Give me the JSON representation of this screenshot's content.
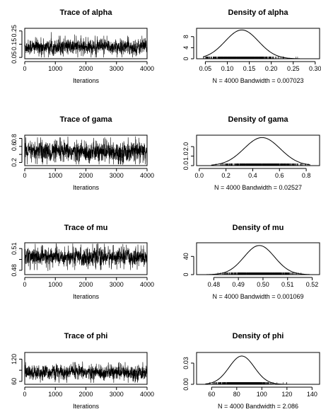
{
  "chart_data": [
    {
      "type": "line",
      "plot": "trace",
      "parameter": "alpha",
      "title": "Trace of alpha",
      "xlabel": "Iterations",
      "ylabel": "",
      "x_ticks": [
        0,
        1000,
        2000,
        3000,
        4000
      ],
      "y_ticks": [
        0.05,
        0.15,
        0.25
      ],
      "y_tick_labels": [
        "0.05",
        "0.15",
        "0.25"
      ],
      "xlim": [
        0,
        4000
      ],
      "ylim": [
        0.04,
        0.27
      ],
      "series": [
        {
          "iterations": 4000,
          "center": 0.13,
          "spread": 0.03,
          "min": 0.05,
          "max": 0.26
        }
      ]
    },
    {
      "type": "line",
      "plot": "density",
      "parameter": "alpha",
      "title": "Density of alpha",
      "xlabel": "N = 4000   Bandwidth = 0.007023",
      "x_ticks": [
        0.05,
        0.1,
        0.15,
        0.2,
        0.25,
        0.3
      ],
      "x_tick_labels": [
        "0.05",
        "0.10",
        "0.15",
        "0.20",
        "0.25",
        "0.30"
      ],
      "y_ticks": [
        0,
        4,
        8
      ],
      "y_tick_labels": [
        "0",
        "4",
        "8"
      ],
      "xlim": [
        0.03,
        0.31
      ],
      "ylim": [
        0,
        11
      ],
      "series": [
        {
          "distribution": "normal",
          "mean": 0.133,
          "sd": 0.038,
          "peak": 10.4,
          "support": [
            0.045,
            0.265
          ]
        }
      ]
    },
    {
      "type": "line",
      "plot": "trace",
      "parameter": "gama",
      "title": "Trace of gama",
      "xlabel": "Iterations",
      "x_ticks": [
        0,
        1000,
        2000,
        3000,
        4000
      ],
      "y_ticks": [
        0.2,
        0.4,
        0.6,
        0.8
      ],
      "y_tick_labels": [
        "0.2",
        "",
        "0.6",
        "0.8"
      ],
      "xlim": [
        0,
        4000
      ],
      "ylim": [
        0.12,
        0.88
      ],
      "series": [
        {
          "iterations": 4000,
          "center": 0.46,
          "spread": 0.13,
          "min": 0.15,
          "max": 0.85
        }
      ]
    },
    {
      "type": "line",
      "plot": "density",
      "parameter": "gama",
      "title": "Density of gama",
      "xlabel": "N = 4000   Bandwidth = 0.02527",
      "x_ticks": [
        0.0,
        0.2,
        0.4,
        0.6,
        0.8
      ],
      "x_tick_labels": [
        "0.0",
        "0.2",
        "0.4",
        "0.6",
        "0.8"
      ],
      "y_ticks": [
        0.0,
        1.0,
        2.0
      ],
      "y_tick_labels": [
        "0.0",
        "1.0",
        "2.0"
      ],
      "xlim": [
        -0.02,
        0.9
      ],
      "ylim": [
        0,
        3.2
      ],
      "series": [
        {
          "distribution": "normal",
          "mean": 0.47,
          "sd": 0.135,
          "peak": 2.95,
          "support": [
            0.09,
            0.83
          ]
        }
      ]
    },
    {
      "type": "line",
      "plot": "trace",
      "parameter": "mu",
      "title": "Trace of mu",
      "xlabel": "Iterations",
      "x_ticks": [
        0,
        1000,
        2000,
        3000,
        4000
      ],
      "y_ticks": [
        0.48,
        0.495,
        0.51
      ],
      "y_tick_labels": [
        "0.48",
        "",
        "0.51"
      ],
      "xlim": [
        0,
        4000
      ],
      "ylim": [
        0.474,
        0.518
      ],
      "series": [
        {
          "iterations": 4000,
          "center": 0.4985,
          "spread": 0.0065,
          "min": 0.479,
          "max": 0.517
        }
      ]
    },
    {
      "type": "line",
      "plot": "density",
      "parameter": "mu",
      "title": "Density of mu",
      "xlabel": "N = 4000   Bandwidth = 0.001069",
      "x_ticks": [
        0.48,
        0.49,
        0.5,
        0.51,
        0.52
      ],
      "x_tick_labels": [
        "0.48",
        "0.49",
        "0.50",
        "0.51",
        "0.52"
      ],
      "y_ticks": [
        0,
        40
      ],
      "y_tick_labels": [
        "0",
        "40"
      ],
      "xlim": [
        0.473,
        0.523
      ],
      "ylim": [
        0,
        70
      ],
      "series": [
        {
          "distribution": "normal",
          "mean": 0.4985,
          "sd": 0.0062,
          "peak": 64,
          "support": [
            0.477,
            0.519
          ]
        }
      ]
    },
    {
      "type": "line",
      "plot": "trace",
      "parameter": "phi",
      "title": "Trace of phi",
      "xlabel": "Iterations",
      "x_ticks": [
        0,
        1000,
        2000,
        3000,
        4000
      ],
      "y_ticks": [
        60,
        90,
        120
      ],
      "y_tick_labels": [
        "60",
        "",
        "120"
      ],
      "xlim": [
        0,
        4000
      ],
      "ylim": [
        52,
        138
      ],
      "series": [
        {
          "iterations": 4000,
          "center": 84,
          "spread": 10,
          "min": 56,
          "max": 134
        }
      ]
    },
    {
      "type": "line",
      "plot": "density",
      "parameter": "phi",
      "title": "Density of phi",
      "xlabel": "N = 4000   Bandwidth = 2.086",
      "x_ticks": [
        60,
        80,
        100,
        120,
        140
      ],
      "x_tick_labels": [
        "60",
        "80",
        "100",
        "120",
        "140"
      ],
      "y_ticks": [
        0.0,
        0.03
      ],
      "y_tick_labels": [
        "0.00",
        "0.03"
      ],
      "xlim": [
        48,
        146
      ],
      "ylim": [
        0,
        0.045
      ],
      "series": [
        {
          "distribution": "normal",
          "mean": 84,
          "sd": 10,
          "peak": 0.04,
          "support": [
            55,
            135
          ]
        }
      ]
    }
  ]
}
